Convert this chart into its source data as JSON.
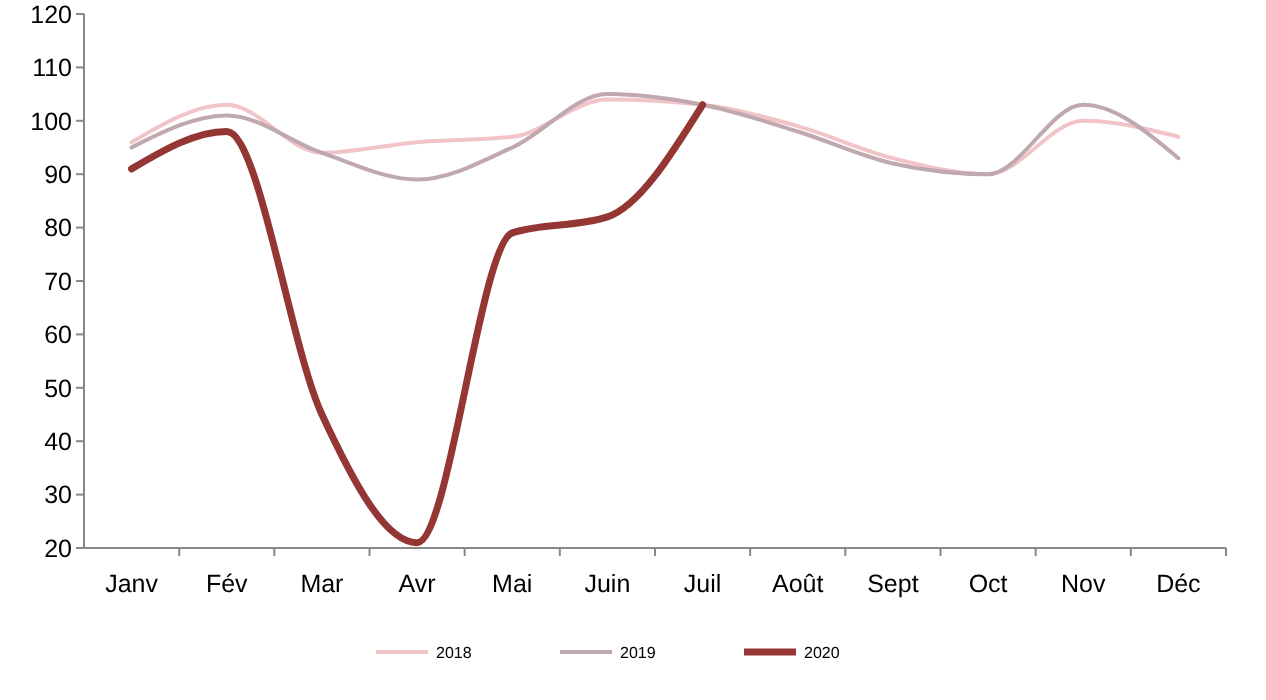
{
  "chart_data": {
    "type": "line",
    "categories": [
      "Janv",
      "Fév",
      "Mar",
      "Avr",
      "Mai",
      "Juin",
      "Juil",
      "Août",
      "Sept",
      "Oct",
      "Nov",
      "Déc"
    ],
    "ylim": [
      20,
      120
    ],
    "yticks": [
      20,
      30,
      40,
      50,
      60,
      70,
      80,
      90,
      100,
      110,
      120
    ],
    "grid": false,
    "legend": "bottom",
    "marker": "none",
    "series": [
      {
        "name": "2018",
        "color": "#f2c4c8",
        "values": [
          96,
          103,
          94,
          96,
          97,
          104,
          103,
          99,
          93,
          90,
          100,
          97
        ]
      },
      {
        "name": "2019",
        "color": "#c0a8b0",
        "values": [
          95,
          101,
          94,
          89,
          95,
          105,
          103,
          98,
          92,
          90,
          103,
          93
        ]
      },
      {
        "name": "2020",
        "color": "#943634",
        "values": [
          91,
          98,
          45,
          21,
          79,
          82,
          103,
          null,
          null,
          null,
          null,
          null
        ]
      }
    ]
  }
}
